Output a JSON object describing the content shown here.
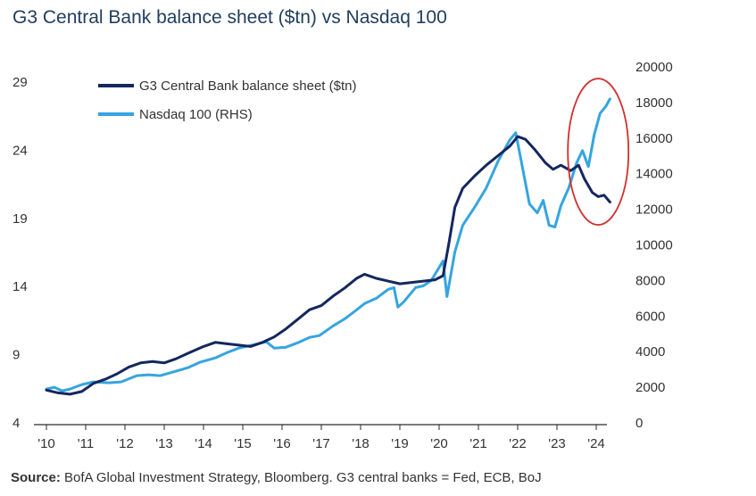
{
  "header": {
    "title": "G3 Central Bank balance sheet ($tn) vs Nasdaq 100"
  },
  "footer": {
    "source_label": "Source:",
    "source_text": "BofA Global Investment Strategy, Bloomberg. G3 central banks = Fed, ECB, BoJ"
  },
  "chart_data": {
    "type": "line",
    "title": "G3 Central Bank balance sheet ($tn) vs Nasdaq 100",
    "x_tick_labels": [
      "'10",
      "'11",
      "'12",
      "'13",
      "'14",
      "'15",
      "'16",
      "'17",
      "'18",
      "'19",
      "'20",
      "'21",
      "'22",
      "'23",
      "'24"
    ],
    "x_range": [
      2010.0,
      2024.5
    ],
    "y_left": {
      "range": [
        4,
        29
      ],
      "ticks": [
        4,
        9,
        14,
        19,
        24,
        29
      ],
      "unit": "$tn"
    },
    "y_right": {
      "range": [
        0,
        20000
      ],
      "ticks": [
        0,
        2000,
        4000,
        6000,
        8000,
        10000,
        12000,
        14000,
        16000,
        18000,
        20000
      ]
    },
    "grid": false,
    "legend_position": "top-left",
    "annotation": {
      "type": "ellipse",
      "color": "#d0302f",
      "around": "2023.6-2024.4 divergence"
    },
    "series": [
      {
        "name": "G3 Central Bank balance sheet ($tn)",
        "axis": "left",
        "color": "#14275e",
        "points": [
          [
            2010.0,
            6.4
          ],
          [
            2010.3,
            6.2
          ],
          [
            2010.6,
            6.1
          ],
          [
            2010.9,
            6.3
          ],
          [
            2011.2,
            6.9
          ],
          [
            2011.5,
            7.2
          ],
          [
            2011.8,
            7.6
          ],
          [
            2012.1,
            8.1
          ],
          [
            2012.4,
            8.4
          ],
          [
            2012.7,
            8.5
          ],
          [
            2013.0,
            8.4
          ],
          [
            2013.3,
            8.7
          ],
          [
            2013.6,
            9.1
          ],
          [
            2014.0,
            9.6
          ],
          [
            2014.3,
            9.9
          ],
          [
            2014.6,
            9.8
          ],
          [
            2014.9,
            9.7
          ],
          [
            2015.2,
            9.6
          ],
          [
            2015.5,
            9.9
          ],
          [
            2015.8,
            10.3
          ],
          [
            2016.1,
            10.9
          ],
          [
            2016.4,
            11.6
          ],
          [
            2016.7,
            12.3
          ],
          [
            2017.0,
            12.6
          ],
          [
            2017.3,
            13.3
          ],
          [
            2017.6,
            13.9
          ],
          [
            2017.9,
            14.6
          ],
          [
            2018.1,
            14.9
          ],
          [
            2018.4,
            14.6
          ],
          [
            2018.7,
            14.4
          ],
          [
            2019.0,
            14.2
          ],
          [
            2019.3,
            14.3
          ],
          [
            2019.6,
            14.4
          ],
          [
            2019.9,
            14.5
          ],
          [
            2020.1,
            14.8
          ],
          [
            2020.25,
            17.2
          ],
          [
            2020.4,
            19.8
          ],
          [
            2020.6,
            21.2
          ],
          [
            2020.9,
            22.1
          ],
          [
            2021.2,
            22.9
          ],
          [
            2021.5,
            23.6
          ],
          [
            2021.8,
            24.3
          ],
          [
            2022.0,
            25.0
          ],
          [
            2022.2,
            24.8
          ],
          [
            2022.45,
            24.0
          ],
          [
            2022.7,
            23.1
          ],
          [
            2022.9,
            22.6
          ],
          [
            2023.1,
            22.9
          ],
          [
            2023.35,
            22.5
          ],
          [
            2023.55,
            22.9
          ],
          [
            2023.7,
            21.9
          ],
          [
            2023.9,
            20.9
          ],
          [
            2024.05,
            20.6
          ],
          [
            2024.2,
            20.7
          ],
          [
            2024.35,
            20.2
          ]
        ]
      },
      {
        "name": "Nasdaq 100 (RHS)",
        "axis": "right",
        "color": "#35a5e0",
        "points": [
          [
            2010.0,
            1900
          ],
          [
            2010.2,
            2000
          ],
          [
            2010.4,
            1800
          ],
          [
            2010.6,
            1900
          ],
          [
            2010.9,
            2150
          ],
          [
            2011.2,
            2300
          ],
          [
            2011.6,
            2250
          ],
          [
            2011.9,
            2300
          ],
          [
            2012.3,
            2650
          ],
          [
            2012.6,
            2700
          ],
          [
            2012.9,
            2650
          ],
          [
            2013.3,
            2900
          ],
          [
            2013.6,
            3100
          ],
          [
            2013.9,
            3400
          ],
          [
            2014.3,
            3650
          ],
          [
            2014.6,
            3950
          ],
          [
            2014.9,
            4200
          ],
          [
            2015.3,
            4400
          ],
          [
            2015.6,
            4550
          ],
          [
            2015.8,
            4200
          ],
          [
            2016.1,
            4250
          ],
          [
            2016.4,
            4500
          ],
          [
            2016.7,
            4800
          ],
          [
            2016.95,
            4900
          ],
          [
            2017.3,
            5450
          ],
          [
            2017.6,
            5850
          ],
          [
            2017.9,
            6350
          ],
          [
            2018.1,
            6700
          ],
          [
            2018.4,
            7000
          ],
          [
            2018.7,
            7500
          ],
          [
            2018.85,
            7600
          ],
          [
            2018.95,
            6500
          ],
          [
            2019.1,
            6800
          ],
          [
            2019.4,
            7600
          ],
          [
            2019.6,
            7700
          ],
          [
            2019.8,
            8000
          ],
          [
            2020.1,
            9100
          ],
          [
            2020.2,
            7100
          ],
          [
            2020.4,
            9600
          ],
          [
            2020.6,
            11100
          ],
          [
            2020.9,
            12100
          ],
          [
            2021.2,
            13200
          ],
          [
            2021.5,
            14700
          ],
          [
            2021.8,
            15900
          ],
          [
            2021.95,
            16300
          ],
          [
            2022.1,
            14600
          ],
          [
            2022.3,
            12300
          ],
          [
            2022.5,
            11800
          ],
          [
            2022.65,
            12500
          ],
          [
            2022.8,
            11100
          ],
          [
            2022.95,
            11000
          ],
          [
            2023.1,
            12200
          ],
          [
            2023.3,
            13200
          ],
          [
            2023.5,
            14600
          ],
          [
            2023.65,
            15300
          ],
          [
            2023.8,
            14400
          ],
          [
            2023.95,
            16200
          ],
          [
            2024.1,
            17400
          ],
          [
            2024.25,
            17800
          ],
          [
            2024.35,
            18200
          ]
        ]
      }
    ]
  }
}
